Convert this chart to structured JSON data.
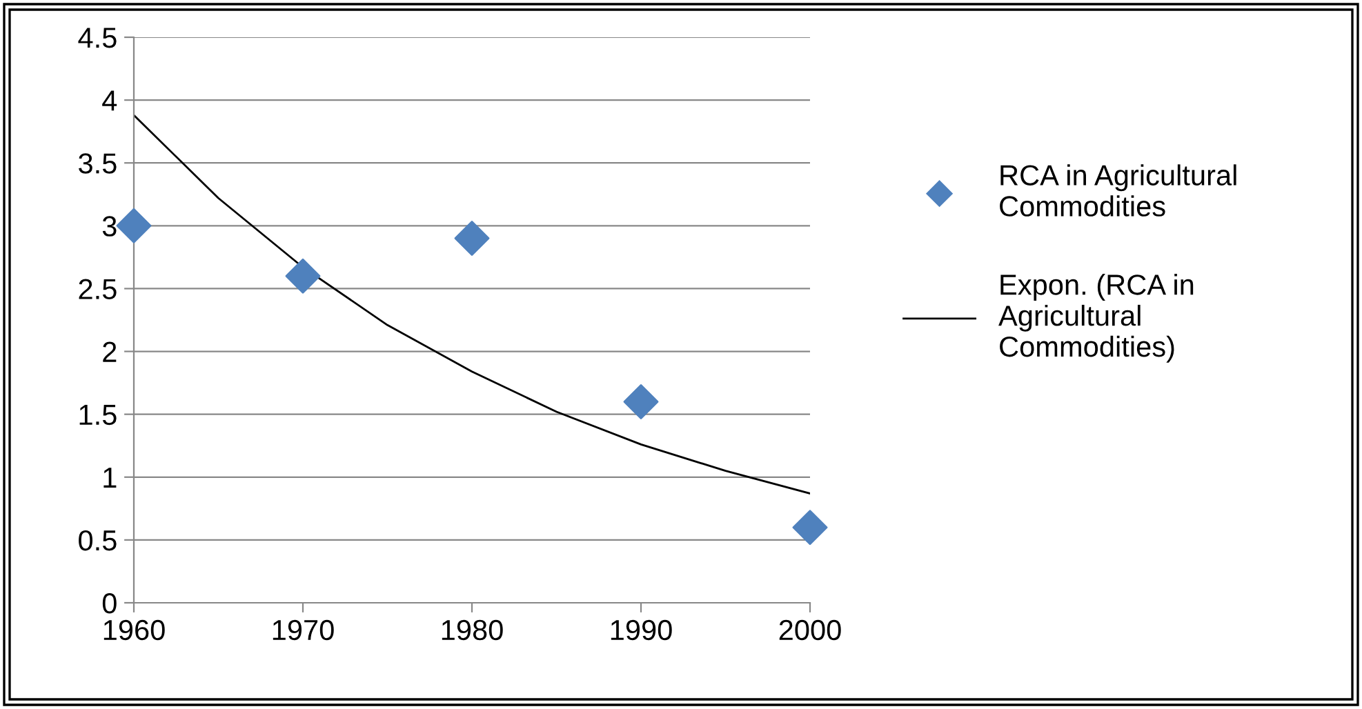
{
  "chart_data": {
    "type": "scatter",
    "x": [
      1960,
      1970,
      1980,
      1990,
      2000
    ],
    "series": [
      {
        "name": "RCA in Agricultural Commodities",
        "color": "#4f81bd",
        "marker": "diamond",
        "values": [
          3.0,
          2.6,
          2.9,
          1.6,
          0.6
        ]
      },
      {
        "name": "Expon. (RCA in Agricultural Commodities)",
        "type": "line",
        "color": "#000000",
        "marker": "none",
        "line_style": "solid",
        "x": [
          1960,
          1965,
          1970,
          1975,
          1980,
          1985,
          1990,
          1995,
          2000
        ],
        "values": [
          3.88,
          3.22,
          2.67,
          2.21,
          1.84,
          1.52,
          1.26,
          1.05,
          0.87
        ]
      }
    ],
    "xlim": [
      1960,
      2000
    ],
    "xticks": [
      1960,
      1970,
      1980,
      1990,
      2000
    ],
    "ylim": [
      0,
      4.5
    ],
    "yticks": [
      0,
      0.5,
      1,
      1.5,
      2,
      2.5,
      3,
      3.5,
      4,
      4.5
    ],
    "grid": "y",
    "legend": "right"
  }
}
